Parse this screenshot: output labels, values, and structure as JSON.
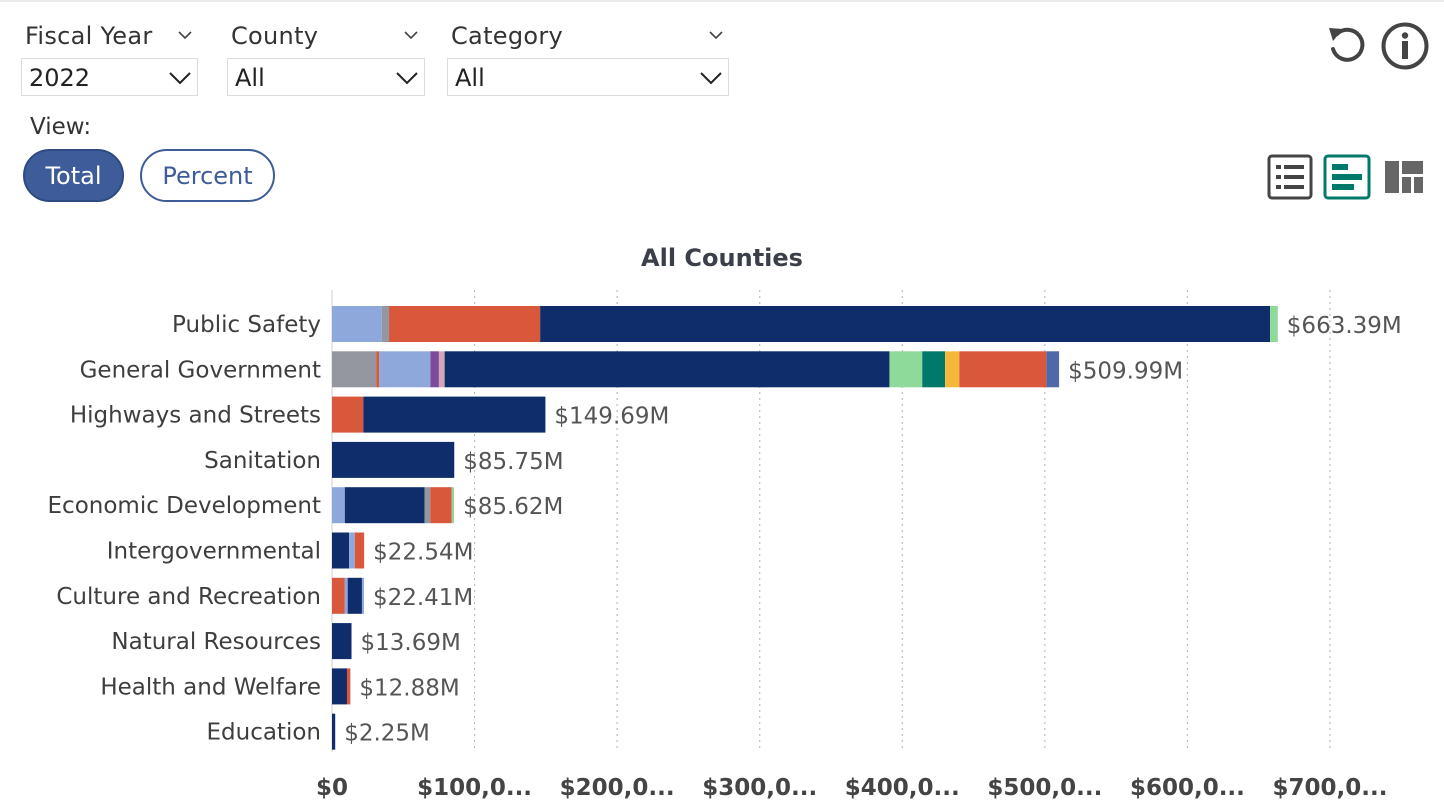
{
  "filters": [
    {
      "label": "Fiscal Year",
      "value": "2022"
    },
    {
      "label": "County",
      "value": "All"
    },
    {
      "label": "Category",
      "value": "All"
    }
  ],
  "view": {
    "label": "View:",
    "options": [
      "Total",
      "Percent"
    ],
    "selected": "Total"
  },
  "toolbar": {
    "icons": [
      "reset-icon",
      "info-icon"
    ],
    "view_icons": [
      "list-view-icon",
      "bar-chart-view-icon",
      "treemap-view-icon"
    ],
    "active_view_icon": "bar-chart-view-icon"
  },
  "colors": {
    "accent": "#3e5c99",
    "active_icon": "#00796b",
    "navy": "#0f2d6b",
    "light_blue": "#8fa8dc",
    "gray": "#9497a0",
    "red_orange": "#d9573b",
    "purple": "#7d4b9e",
    "pink": "#d6a5b8",
    "light_green": "#8fd99a",
    "teal": "#00796b",
    "amber": "#f4b93a",
    "slate_blue": "#5067a8"
  },
  "chart_data": {
    "type": "bar",
    "orientation": "horizontal",
    "stacked": true,
    "title": "All Counties",
    "xlim": [
      0,
      700000000
    ],
    "x_ticks": [
      0,
      100000000,
      200000000,
      300000000,
      400000000,
      500000000,
      600000000,
      700000000
    ],
    "x_tick_labels": [
      "$0",
      "$100,0...",
      "$200,0...",
      "$300,0...",
      "$400,0...",
      "$500,0...",
      "$600,0...",
      "$700,0..."
    ],
    "grid": "vertical dotted",
    "categories": [
      {
        "name": "Public Safety",
        "total_label": "$663.39M",
        "segments": [
          {
            "value": 35000000,
            "color": "#8fa8dc"
          },
          {
            "value": 5000000,
            "color": "#9497a0"
          },
          {
            "value": 106000000,
            "color": "#d9573b"
          },
          {
            "value": 512000000,
            "color": "#0f2d6b"
          },
          {
            "value": 5390000,
            "color": "#8fd99a"
          }
        ]
      },
      {
        "name": "General Government",
        "total_label": "$509.99M",
        "segments": [
          {
            "value": 31000000,
            "color": "#9497a0"
          },
          {
            "value": 2000000,
            "color": "#d9573b"
          },
          {
            "value": 36000000,
            "color": "#8fa8dc"
          },
          {
            "value": 6000000,
            "color": "#7d4b9e"
          },
          {
            "value": 4000000,
            "color": "#d6a5b8"
          },
          {
            "value": 312000000,
            "color": "#0f2d6b"
          },
          {
            "value": 23000000,
            "color": "#8fd99a"
          },
          {
            "value": 16000000,
            "color": "#00796b"
          },
          {
            "value": 10000000,
            "color": "#f4b93a"
          },
          {
            "value": 61000000,
            "color": "#d9573b"
          },
          {
            "value": 8990000,
            "color": "#5067a8"
          }
        ]
      },
      {
        "name": "Highways and Streets",
        "total_label": "$149.69M",
        "segments": [
          {
            "value": 22000000,
            "color": "#d9573b"
          },
          {
            "value": 127690000,
            "color": "#0f2d6b"
          }
        ]
      },
      {
        "name": "Sanitation",
        "total_label": "$85.75M",
        "segments": [
          {
            "value": 85750000,
            "color": "#0f2d6b"
          }
        ]
      },
      {
        "name": "Economic Development",
        "total_label": "$85.62M",
        "segments": [
          {
            "value": 9000000,
            "color": "#8fa8dc"
          },
          {
            "value": 56000000,
            "color": "#0f2d6b"
          },
          {
            "value": 4000000,
            "color": "#9497a0"
          },
          {
            "value": 15000000,
            "color": "#d9573b"
          },
          {
            "value": 1620000,
            "color": "#8fd99a"
          }
        ]
      },
      {
        "name": "Intergovernmental",
        "total_label": "$22.54M",
        "segments": [
          {
            "value": 12000000,
            "color": "#0f2d6b"
          },
          {
            "value": 4000000,
            "color": "#8fa8dc"
          },
          {
            "value": 6540000,
            "color": "#d9573b"
          }
        ]
      },
      {
        "name": "Culture and Recreation",
        "total_label": "$22.41M",
        "segments": [
          {
            "value": 9000000,
            "color": "#d9573b"
          },
          {
            "value": 2000000,
            "color": "#8fa8dc"
          },
          {
            "value": 10000000,
            "color": "#0f2d6b"
          },
          {
            "value": 1410000,
            "color": "#8fa8dc"
          }
        ]
      },
      {
        "name": "Natural Resources",
        "total_label": "$13.69M",
        "segments": [
          {
            "value": 13690000,
            "color": "#0f2d6b"
          }
        ]
      },
      {
        "name": "Health and Welfare",
        "total_label": "$12.88M",
        "segments": [
          {
            "value": 10500000,
            "color": "#0f2d6b"
          },
          {
            "value": 2380000,
            "color": "#d9573b"
          }
        ]
      },
      {
        "name": "Education",
        "total_label": "$2.25M",
        "segments": [
          {
            "value": 2250000,
            "color": "#0f2d6b"
          }
        ]
      }
    ]
  }
}
